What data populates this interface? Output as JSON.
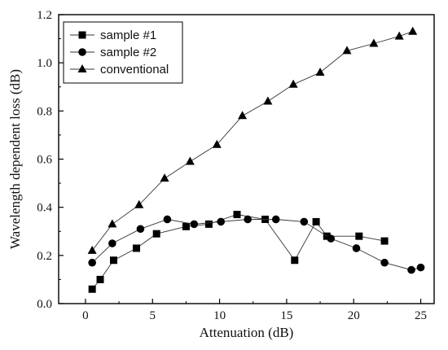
{
  "chart_data": {
    "type": "line",
    "xlabel": "Attenuation (dB)",
    "ylabel": "Wavelength dependent loss (dB)",
    "xlim": [
      -2,
      26
    ],
    "ylim": [
      0.0,
      1.2
    ],
    "xticks": [
      0,
      5,
      10,
      15,
      20,
      25
    ],
    "yticks": [
      0.0,
      0.2,
      0.4,
      0.6,
      0.8,
      1.0,
      1.2
    ],
    "xtick_labels": [
      "0",
      "5",
      "10",
      "15",
      "20",
      "25"
    ],
    "ytick_labels": [
      "0.0",
      "0.2",
      "0.4",
      "0.6",
      "0.8",
      "1.0",
      "1.2"
    ],
    "grid": false,
    "legend_position": "top-left",
    "series": [
      {
        "name": "sample #1",
        "marker": "square",
        "points": [
          [
            0.5,
            0.06
          ],
          [
            1.1,
            0.1
          ],
          [
            2.1,
            0.18
          ],
          [
            3.8,
            0.23
          ],
          [
            5.3,
            0.29
          ],
          [
            7.5,
            0.32
          ],
          [
            9.2,
            0.33
          ],
          [
            11.3,
            0.37
          ],
          [
            13.4,
            0.35
          ],
          [
            15.6,
            0.18
          ],
          [
            17.2,
            0.34
          ],
          [
            18.0,
            0.28
          ],
          [
            20.4,
            0.28
          ],
          [
            22.3,
            0.26
          ]
        ]
      },
      {
        "name": "sample #2",
        "marker": "circle",
        "points": [
          [
            0.5,
            0.17
          ],
          [
            2.0,
            0.25
          ],
          [
            4.1,
            0.31
          ],
          [
            6.1,
            0.35
          ],
          [
            8.1,
            0.33
          ],
          [
            10.1,
            0.34
          ],
          [
            12.1,
            0.35
          ],
          [
            14.2,
            0.35
          ],
          [
            16.3,
            0.34
          ],
          [
            18.3,
            0.27
          ],
          [
            20.2,
            0.23
          ],
          [
            22.3,
            0.17
          ],
          [
            24.3,
            0.14
          ],
          [
            25.0,
            0.15
          ]
        ]
      },
      {
        "name": "conventional",
        "marker": "triangle",
        "points": [
          [
            0.5,
            0.22
          ],
          [
            2.0,
            0.33
          ],
          [
            4.0,
            0.41
          ],
          [
            5.9,
            0.52
          ],
          [
            7.8,
            0.59
          ],
          [
            9.8,
            0.66
          ],
          [
            11.7,
            0.78
          ],
          [
            13.6,
            0.84
          ],
          [
            15.5,
            0.91
          ],
          [
            17.5,
            0.96
          ],
          [
            19.5,
            1.05
          ],
          [
            21.5,
            1.08
          ],
          [
            23.4,
            1.11
          ],
          [
            24.4,
            1.13
          ]
        ]
      }
    ]
  }
}
